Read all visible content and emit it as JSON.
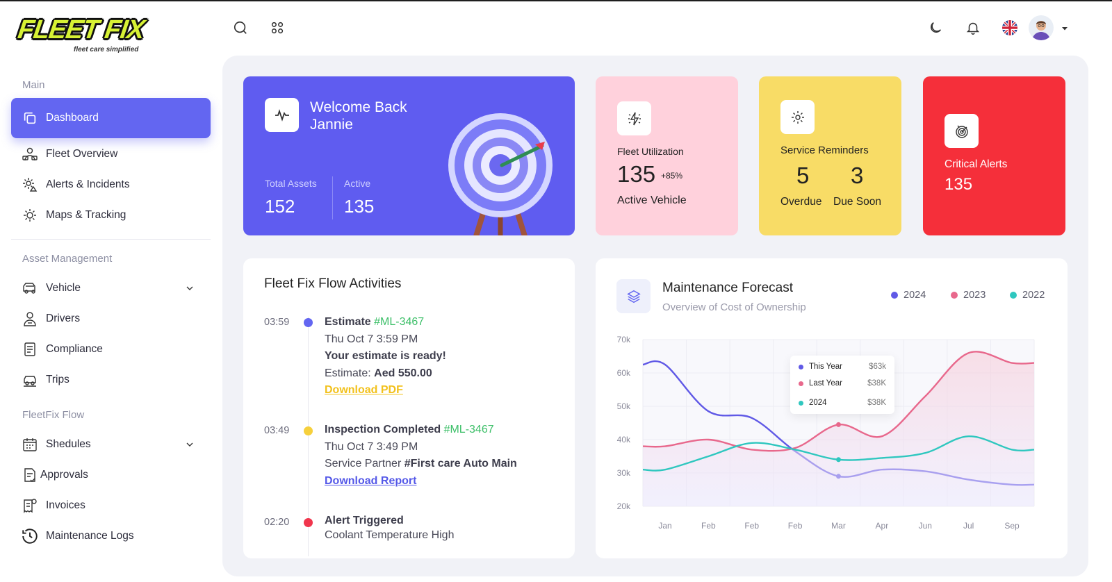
{
  "brand": {
    "logo_text": "FLEET FIX",
    "tagline": "fleet care simplified"
  },
  "sidebar": {
    "sections": [
      {
        "label": "Main"
      },
      {
        "label": "Asset Management"
      },
      {
        "label": "FleetFix Flow"
      }
    ],
    "items": [
      {
        "label": "Dashboard",
        "icon": "copy-icon"
      },
      {
        "label": "Fleet Overview",
        "icon": "fleet-icon"
      },
      {
        "label": "Alerts  & Incidents",
        "icon": "alert-gear-icon"
      },
      {
        "label": "Maps & Tracking",
        "icon": "map-gear-icon"
      },
      {
        "label": "Vehicle",
        "icon": "vehicle-icon"
      },
      {
        "label": "Drivers",
        "icon": "driver-icon"
      },
      {
        "label": "Compliance",
        "icon": "compliance-icon"
      },
      {
        "label": "Trips",
        "icon": "trips-icon"
      },
      {
        "label": "Shedules",
        "icon": "calendar-icon"
      },
      {
        "label": "Approvals",
        "icon": "approvals-icon"
      },
      {
        "label": "Invoices",
        "icon": "invoice-icon"
      },
      {
        "label": "Maintenance Logs",
        "icon": "history-icon"
      }
    ]
  },
  "topbar": {
    "icons": [
      "search-icon",
      "apps-icon",
      "moon-icon",
      "bell-icon",
      "uk-flag-icon",
      "avatar"
    ]
  },
  "welcome": {
    "line1": "Welcome Back",
    "line2": "Jannie",
    "total_label": "Total Assets",
    "total_value": "152",
    "active_label": "Active",
    "active_value": "135"
  },
  "stats": {
    "utilization": {
      "label": "Fleet Utilization",
      "value": "135",
      "delta": "+85%",
      "sub": "Active Vehicle",
      "color": "#ffd1dc"
    },
    "service": {
      "label": "Service Reminders",
      "overdue_value": "5",
      "overdue_label": "Overdue",
      "soon_value": "3",
      "soon_label": "Due Soon",
      "color": "#f8dc66"
    },
    "critical": {
      "label": "Critical Alerts",
      "value": "135",
      "color": "#f52f3a"
    }
  },
  "activities": {
    "title": "Fleet Fix Flow Activities",
    "items": [
      {
        "time": "03:59",
        "color": "#6366f1",
        "title": "Estimate",
        "ref": "#ML-3467",
        "date": "Thu Oct 7 3:59 PM",
        "line3": "Your estimate is ready!",
        "line4_prefix": "Estimate: ",
        "line4_bold": "Aed 550.00",
        "link": "Download PDF"
      },
      {
        "time": "03:49",
        "color": "#f6d03c",
        "title": "Inspection Completed",
        "ref": "#ML-3467",
        "date": "Thu Oct 7 3:49 PM",
        "line3_prefix": "Service Partner ",
        "line3_bold": "#First care Auto Main",
        "link": "Download Report"
      },
      {
        "time": "02:20",
        "color": "#f0364d",
        "title": "Alert Triggered",
        "date": "Coolant Temperature High"
      }
    ]
  },
  "forecast": {
    "title": "Maintenance Forecast",
    "subtitle": "Overview of Cost of Ownership",
    "legend": [
      {
        "label": "2024",
        "color": "#6059e6"
      },
      {
        "label": "2023",
        "color": "#e8688c"
      },
      {
        "label": "2022",
        "color": "#2fc7bf"
      }
    ],
    "tooltip": [
      {
        "label": "This Year",
        "value": "$63k",
        "color": "#6059e6"
      },
      {
        "label": "Last Year",
        "value": "$38K",
        "color": "#e8688c"
      },
      {
        "label": "2024",
        "value": "$38K",
        "color": "#2fc7bf"
      }
    ]
  },
  "chart_data": {
    "type": "line",
    "categories": [
      "Jan",
      "Feb",
      "Feb",
      "Feb",
      "Mar",
      "Apr",
      "Jun",
      "Jul",
      "Sep"
    ],
    "yticks": [
      "70k",
      "60k",
      "50k",
      "40k",
      "30k",
      "20k"
    ],
    "ylim": [
      20,
      70
    ],
    "series": [
      {
        "name": "2024",
        "color": "#6059e6",
        "values": [
          62.5,
          48.5,
          46.5,
          36.5,
          29,
          31,
          30.5,
          28,
          26.5
        ]
      },
      {
        "name": "2023",
        "color": "#e8688c",
        "values": [
          38,
          40,
          37,
          37.5,
          44.5,
          41,
          53,
          66,
          63
        ]
      },
      {
        "name": "2022",
        "color": "#2fc7bf",
        "values": [
          31,
          35,
          39,
          37,
          34,
          34.5,
          36,
          41,
          37
        ]
      }
    ]
  }
}
